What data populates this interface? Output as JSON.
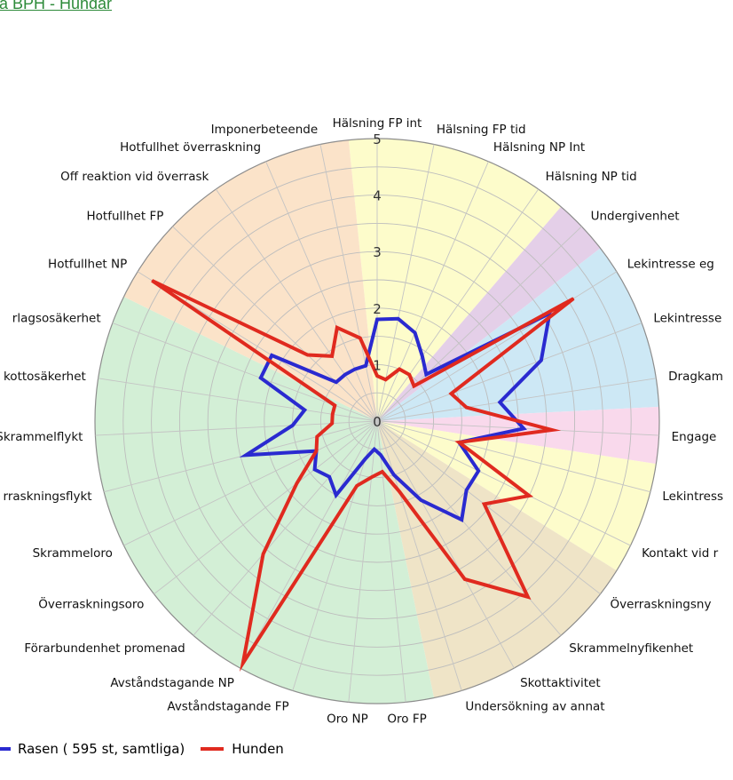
{
  "header": {
    "link_text": "a BPH - Hundar"
  },
  "chart_data": {
    "type": "radar",
    "title": "",
    "rmax": 5,
    "rings": 10,
    "radial_tick_labels": [
      "0",
      "1",
      "2",
      "3",
      "4",
      "5"
    ],
    "axes": [
      "Hälsning FP int",
      "Hälsning FP tid",
      "Hälsning NP Int",
      "Hälsning NP tid",
      "Undergivenhet",
      "Lekintresse eg",
      "Lekintresse",
      "Dragkam",
      "Engage",
      "Lekintress",
      "Kontakt vid r",
      "Överraskningsny",
      "Skrammelnyfikenhet",
      "Skottaktivitet",
      "Undersökning av annat",
      "Oro FP",
      "Oro NP",
      "Avståndstagande FP",
      "Avståndstagande NP",
      "Förarbundenhet promenad",
      "Överraskningsoro",
      "Skrammeloro",
      "rraskningsflykt",
      "Skrammelflykt",
      "kottosäkerhet",
      "rlagsosäkerhet",
      "Hotfullhet NP",
      "Hotfullhet FP",
      "Off reaktion vid överrask",
      "Hotfullhet överraskning",
      "Imponerbeteende"
    ],
    "sectors": [
      {
        "color": "#fdfccb",
        "from": 0,
        "to": 3
      },
      {
        "color": "#e4cfe8",
        "from": 4,
        "to": 4
      },
      {
        "color": "#cde8f5",
        "from": 5,
        "to": 7
      },
      {
        "color": "#f9d9ec",
        "from": 8,
        "to": 8
      },
      {
        "color": "#fdfccb",
        "from": 9,
        "to": 10
      },
      {
        "color": "#efe4c7",
        "from": 11,
        "to": 14
      },
      {
        "color": "#d3efd6",
        "from": 15,
        "to": 25
      },
      {
        "color": "#fbe3c9",
        "from": 26,
        "to": 30
      }
    ],
    "series": [
      {
        "name": "Rasen ( 595 st, samtliga)",
        "color": "#2a2ad0",
        "values": [
          1.8,
          1.85,
          1.7,
          1.4,
          1.2,
          3.6,
          3.1,
          2.2,
          2.6,
          1.5,
          2.0,
          2.0,
          2.3,
          1.6,
          1.0,
          0.6,
          0.5,
          0.7,
          1.5,
          1.3,
          1.4,
          1.2,
          2.4,
          1.5,
          1.3,
          2.2,
          2.2,
          1.0,
          1.0,
          1.0,
          1.0
        ]
      },
      {
        "name": "Hunden",
        "color": "#e02a1f",
        "values": [
          0.8,
          0.75,
          1.0,
          1.0,
          0.9,
          4.1,
          1.4,
          1.6,
          3.1,
          1.5,
          3.0,
          2.4,
          4.1,
          3.2,
          1.3,
          0.9,
          1.0,
          1.2,
          4.9,
          3.1,
          1.8,
          1.2,
          1.1,
          0.8,
          0.8,
          0.8,
          4.7,
          1.7,
          1.4,
          1.8,
          1.5
        ]
      }
    ]
  }
}
